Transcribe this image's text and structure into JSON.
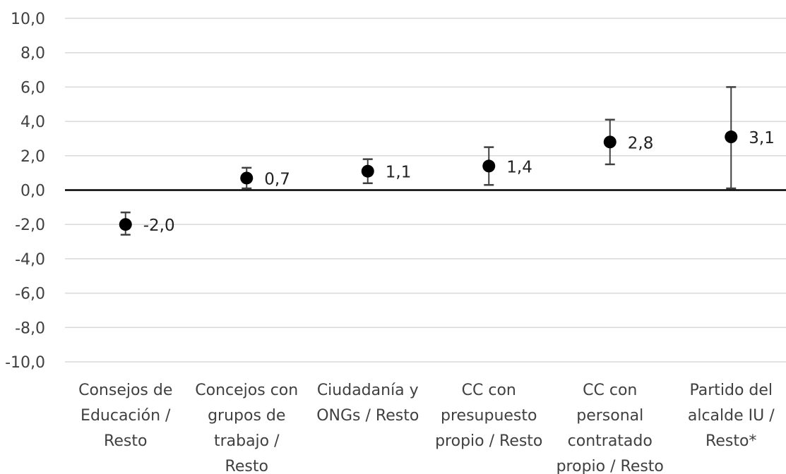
{
  "chart_data": {
    "type": "scatter",
    "subtype": "point-with-error-bars",
    "title": "",
    "xlabel": "",
    "ylabel": "",
    "ylim": [
      -10,
      10
    ],
    "ytick_step": 2,
    "ytick_labels": [
      "-10,0",
      "-8,0",
      "-6,0",
      "-4,0",
      "-2,0",
      "0,0",
      "2,0",
      "4,0",
      "6,0",
      "8,0",
      "10,0"
    ],
    "grid": true,
    "zero_line": true,
    "legend": "none",
    "categories": [
      [
        "Consejos de",
        "Educación /",
        "Resto"
      ],
      [
        "Concejos con",
        "grupos de",
        "trabajo /",
        "Resto"
      ],
      [
        "Ciudadanía y",
        "ONGs / Resto"
      ],
      [
        "CC con",
        "presupuesto",
        "propio / Resto"
      ],
      [
        "CC con",
        "personal",
        "contratado",
        "propio / Resto"
      ],
      [
        "Partido del",
        "alcalde IU /",
        "Resto*"
      ]
    ],
    "values": [
      -2.0,
      0.7,
      1.1,
      1.4,
      2.8,
      3.1
    ],
    "value_labels": [
      "-2,0",
      "0,7",
      "1,1",
      "1,4",
      "2,8",
      "3,1"
    ],
    "error_low": [
      -2.6,
      0.1,
      0.4,
      0.3,
      1.5,
      0.1
    ],
    "error_high": [
      -1.3,
      1.3,
      1.8,
      2.5,
      4.1,
      6.0
    ],
    "colors": {
      "marker": "#000000",
      "grid": "#d9d9d9",
      "axis": "#000000",
      "text": "#404040"
    }
  }
}
